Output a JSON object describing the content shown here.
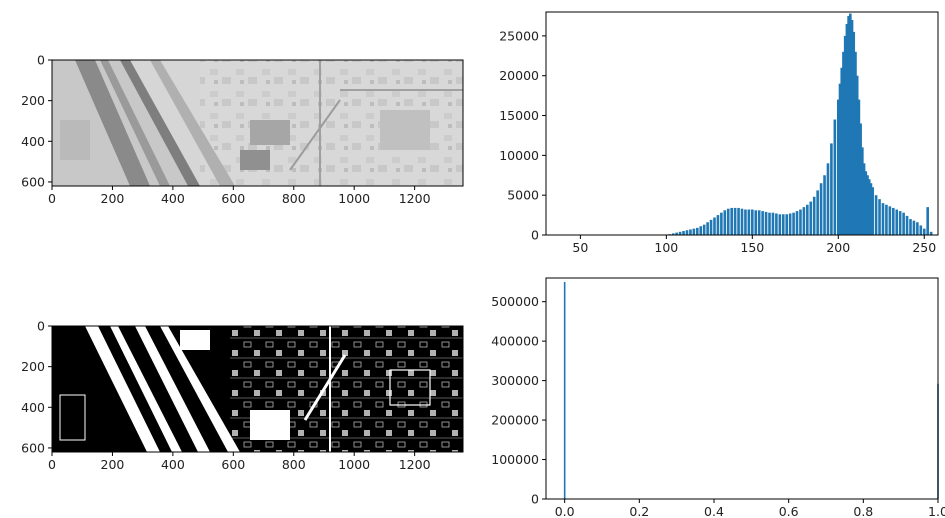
{
  "chart_data": [
    {
      "type": "image",
      "subject": "grayscale aerial view",
      "xticks": [
        0,
        200,
        400,
        600,
        800,
        1000,
        1200
      ],
      "yticks": [
        0,
        200,
        400,
        600
      ],
      "xlim": [
        0,
        1360
      ],
      "ylim": [
        620,
        0
      ]
    },
    {
      "type": "bar",
      "xlim": [
        30,
        258
      ],
      "ylim": [
        0,
        28000
      ],
      "xticks": [
        50,
        100,
        150,
        200,
        250
      ],
      "yticks": [
        0,
        5000,
        10000,
        15000,
        20000,
        25000
      ],
      "color": "#1f77b4",
      "x": [
        100,
        102,
        104,
        106,
        108,
        110,
        112,
        114,
        116,
        118,
        120,
        122,
        124,
        126,
        128,
        130,
        132,
        134,
        136,
        138,
        140,
        142,
        144,
        146,
        148,
        150,
        152,
        154,
        156,
        158,
        160,
        162,
        164,
        166,
        168,
        170,
        172,
        174,
        176,
        178,
        180,
        182,
        184,
        186,
        188,
        190,
        192,
        194,
        196,
        198,
        200,
        201,
        202,
        203,
        204,
        205,
        206,
        207,
        208,
        209,
        210,
        211,
        212,
        213,
        214,
        215,
        216,
        217,
        218,
        219,
        220,
        222,
        224,
        226,
        228,
        230,
        232,
        234,
        236,
        238,
        240,
        242,
        244,
        246,
        248,
        250,
        252,
        254
      ],
      "values": [
        50,
        100,
        200,
        300,
        400,
        500,
        600,
        700,
        800,
        900,
        1100,
        1300,
        1600,
        1900,
        2200,
        2500,
        2800,
        3100,
        3300,
        3400,
        3400,
        3400,
        3300,
        3200,
        3200,
        3200,
        3100,
        3100,
        3000,
        2900,
        2800,
        2800,
        2700,
        2600,
        2600,
        2600,
        2700,
        2800,
        3000,
        3200,
        3500,
        3800,
        4200,
        4800,
        5600,
        6500,
        7500,
        9000,
        11500,
        14500,
        17000,
        19000,
        21000,
        23000,
        25000,
        26500,
        27500,
        27800,
        27000,
        25500,
        23000,
        20000,
        17000,
        14000,
        11000,
        9000,
        8000,
        7500,
        7000,
        6500,
        6000,
        5000,
        4500,
        4000,
        3800,
        3600,
        3400,
        3200,
        3000,
        2800,
        2400,
        2000,
        1800,
        1600,
        1200,
        800,
        3500,
        400
      ]
    },
    {
      "type": "image",
      "subject": "binary thresholded aerial view",
      "xticks": [
        0,
        200,
        400,
        600,
        800,
        1000,
        1200
      ],
      "yticks": [
        0,
        200,
        400,
        600
      ],
      "xlim": [
        0,
        1360
      ],
      "ylim": [
        620,
        0
      ]
    },
    {
      "type": "bar",
      "xlim": [
        -0.05,
        1.0
      ],
      "ylim": [
        0,
        560000
      ],
      "xticks": [
        "0.0",
        "0.2",
        "0.4",
        "0.6",
        "0.8",
        "1.0"
      ],
      "yticks": [
        0,
        100000,
        200000,
        300000,
        400000,
        500000
      ],
      "color": "#1f77b4",
      "x": [
        0.0,
        1.0
      ],
      "values": [
        550000,
        292000
      ]
    }
  ]
}
